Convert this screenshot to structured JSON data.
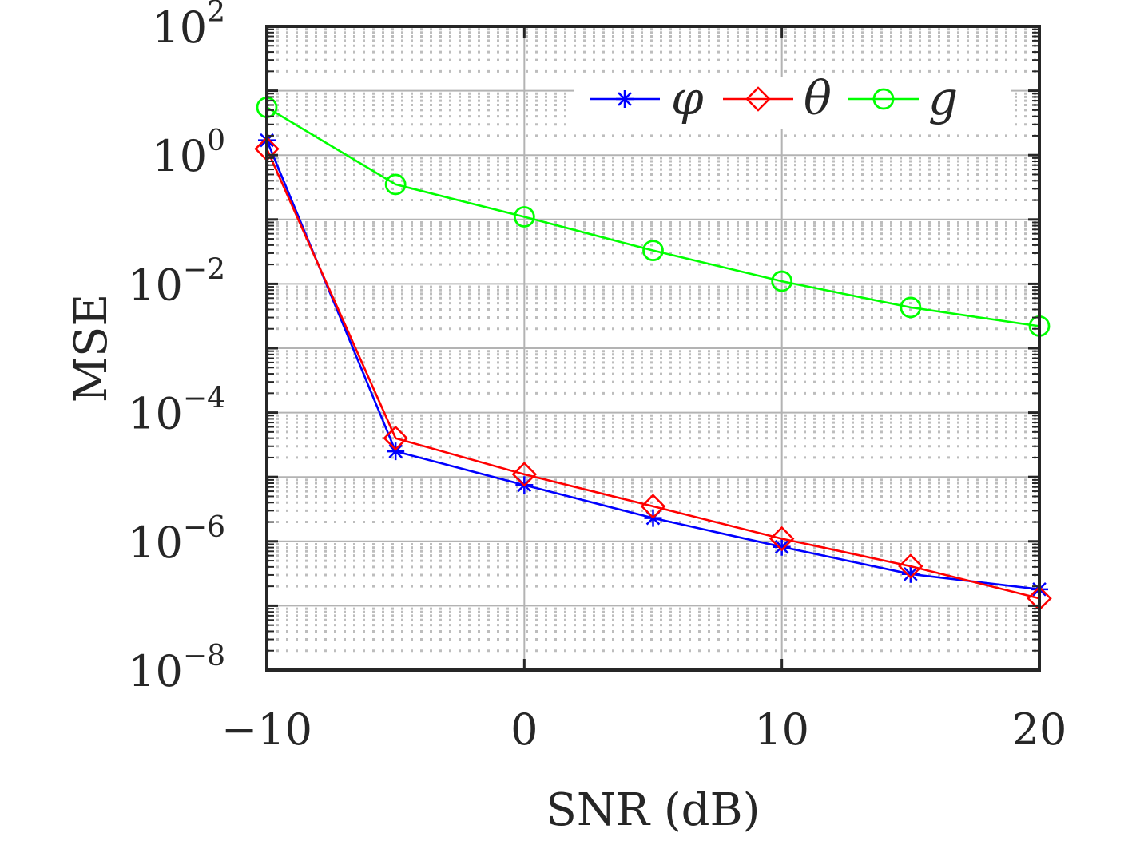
{
  "chart_data": {
    "type": "line",
    "xlabel": "SNR (dB)",
    "ylabel": "MSE",
    "x": [
      -10,
      -5,
      0,
      5,
      10,
      15,
      20
    ],
    "xlim": [
      -10,
      20
    ],
    "ylim": [
      1e-08,
      100
    ],
    "yscale": "log",
    "grid": true,
    "minor_grid": true,
    "x_ticks": [
      {
        "value": -10,
        "label": "−10"
      },
      {
        "value": 0,
        "label": "0"
      },
      {
        "value": 10,
        "label": "10"
      },
      {
        "value": 20,
        "label": "20"
      }
    ],
    "y_ticks": [
      {
        "value": 100,
        "base": "10",
        "exp": "2"
      },
      {
        "value": 1,
        "base": "10",
        "exp": "0"
      },
      {
        "value": 0.01,
        "base": "10",
        "exp": "−2"
      },
      {
        "value": 0.0001,
        "base": "10",
        "exp": "−4"
      },
      {
        "value": 1e-06,
        "base": "10",
        "exp": "−6"
      },
      {
        "value": 1e-08,
        "base": "10",
        "exp": "−8"
      }
    ],
    "legend_position": "top-right",
    "series": [
      {
        "name": "φ",
        "color": "#0000ff",
        "marker": "asterisk",
        "values": [
          1.7,
          2.5e-05,
          7.5e-06,
          2.3e-06,
          8.2e-07,
          3.1e-07,
          1.8e-07
        ]
      },
      {
        "name": "θ",
        "color": "#ff0000",
        "marker": "diamond",
        "values": [
          1.25,
          4e-05,
          1.1e-05,
          3.5e-06,
          1.1e-06,
          4.1e-07,
          1.3e-07
        ]
      },
      {
        "name": "g",
        "color": "#00ff00",
        "marker": "circle",
        "values": [
          5.5,
          0.35,
          0.11,
          0.033,
          0.011,
          0.0043,
          0.0022
        ]
      }
    ]
  }
}
